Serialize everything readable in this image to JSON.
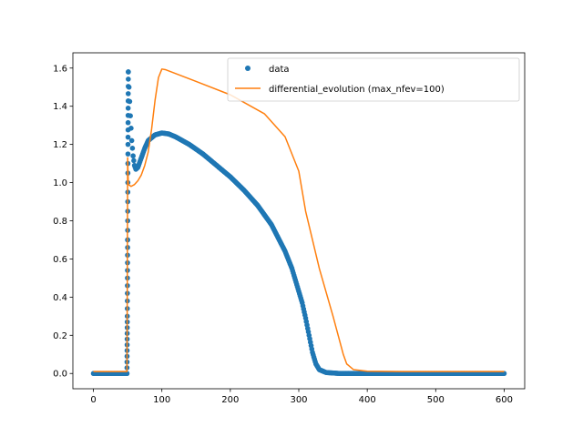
{
  "chart_data": {
    "type": "scatter+line",
    "title": "",
    "xlabel": "",
    "ylabel": "",
    "xlim": [
      -30,
      630
    ],
    "ylim": [
      -0.08,
      1.68
    ],
    "xticks": [
      0,
      100,
      200,
      300,
      400,
      500,
      600
    ],
    "yticks": [
      0.0,
      0.2,
      0.4,
      0.6,
      0.8,
      1.0,
      1.2,
      1.4,
      1.6
    ],
    "grid": false,
    "legend_position": "top-right",
    "series": [
      {
        "name": "data",
        "kind": "scatter",
        "color": "#1f77b4",
        "points": [
          [
            0,
            0.0
          ],
          [
            49,
            0.0
          ],
          [
            49.5,
            0.3
          ],
          [
            50,
            0.7
          ],
          [
            50.5,
            1.2
          ],
          [
            51,
            1.58
          ],
          [
            52,
            1.5
          ],
          [
            54,
            1.35
          ],
          [
            56,
            1.22
          ],
          [
            58,
            1.14
          ],
          [
            60,
            1.09
          ],
          [
            62,
            1.07
          ],
          [
            65,
            1.08
          ],
          [
            70,
            1.13
          ],
          [
            75,
            1.18
          ],
          [
            80,
            1.22
          ],
          [
            90,
            1.25
          ],
          [
            100,
            1.26
          ],
          [
            110,
            1.255
          ],
          [
            120,
            1.24
          ],
          [
            140,
            1.2
          ],
          [
            160,
            1.15
          ],
          [
            180,
            1.09
          ],
          [
            200,
            1.03
          ],
          [
            220,
            0.96
          ],
          [
            240,
            0.88
          ],
          [
            260,
            0.78
          ],
          [
            280,
            0.64
          ],
          [
            290,
            0.55
          ],
          [
            300,
            0.43
          ],
          [
            305,
            0.37
          ],
          [
            310,
            0.29
          ],
          [
            315,
            0.2
          ],
          [
            320,
            0.11
          ],
          [
            325,
            0.05
          ],
          [
            330,
            0.02
          ],
          [
            340,
            0.005
          ],
          [
            360,
            0.0
          ],
          [
            400,
            0.0
          ],
          [
            450,
            0.0
          ],
          [
            500,
            0.0
          ],
          [
            550,
            0.0
          ],
          [
            600,
            0.0
          ]
        ]
      },
      {
        "name": "differential_evolution (max_nfev=100)",
        "kind": "line",
        "color": "#ff7f0e",
        "points": [
          [
            0,
            0.01
          ],
          [
            49,
            0.01
          ],
          [
            49.5,
            0.5
          ],
          [
            50,
            1.13
          ],
          [
            51,
            0.99
          ],
          [
            55,
            0.98
          ],
          [
            60,
            0.99
          ],
          [
            65,
            1.01
          ],
          [
            70,
            1.04
          ],
          [
            75,
            1.09
          ],
          [
            80,
            1.16
          ],
          [
            85,
            1.28
          ],
          [
            90,
            1.43
          ],
          [
            95,
            1.55
          ],
          [
            100,
            1.595
          ],
          [
            105,
            1.592
          ],
          [
            150,
            1.53
          ],
          [
            200,
            1.46
          ],
          [
            250,
            1.36
          ],
          [
            280,
            1.24
          ],
          [
            300,
            1.06
          ],
          [
            310,
            0.85
          ],
          [
            330,
            0.55
          ],
          [
            350,
            0.3
          ],
          [
            365,
            0.1
          ],
          [
            370,
            0.05
          ],
          [
            380,
            0.02
          ],
          [
            400,
            0.012
          ],
          [
            450,
            0.01
          ],
          [
            600,
            0.01
          ]
        ]
      }
    ]
  }
}
